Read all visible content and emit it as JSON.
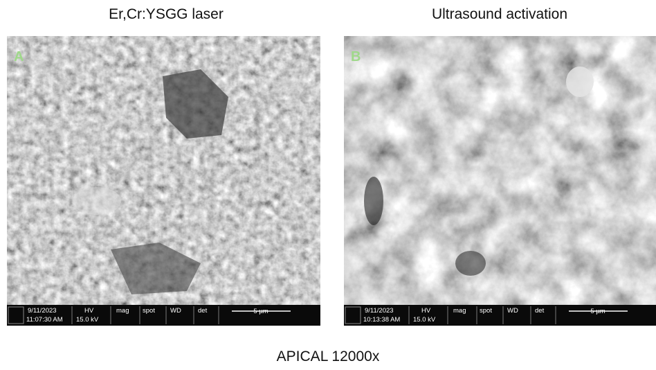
{
  "panels": [
    {
      "title": "Er,Cr:YSGG laser",
      "label": "A",
      "info": {
        "date": "9/11/2023",
        "time": "11:07:30 AM",
        "hv_label": "HV",
        "hv": "15.0 kV",
        "mag_label": "mag",
        "spot_label": "spot",
        "wd_label": "WD",
        "det_label": "det",
        "scale": "5 µm"
      }
    },
    {
      "title": "Ultrasound activation",
      "label": "B",
      "info": {
        "date": "9/11/2023",
        "time": "10:13:38 AM",
        "hv_label": "HV",
        "hv": "15.0 kV",
        "mag_label": "mag",
        "spot_label": "spot",
        "wd_label": "WD",
        "det_label": "det",
        "scale": "5 µm"
      }
    }
  ],
  "caption": "APICAL 12000x"
}
